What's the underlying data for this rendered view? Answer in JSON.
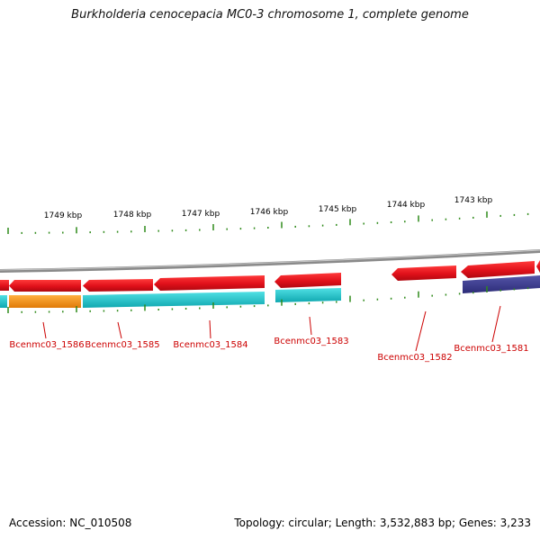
{
  "title": "Burkholderia cenocepacia MC0-3 chromosome 1, complete genome",
  "footer": {
    "accession": "Accession: NC_010508",
    "summary": "Topology: circular; Length: 3,532,883 bp; Genes: 3,233"
  },
  "colors": {
    "forward_gene": "#e8141c",
    "feature_orange": "#f08c10",
    "feature_cyan": "#1ec2c8",
    "feature_navy": "#3a3a8c",
    "backbone": "#8a8a8a",
    "ticks": "#2f8a1a",
    "gene_label": "#cc0000"
  },
  "kbp_markers": [
    "1749 kbp",
    "1748 kbp",
    "1747 kbp",
    "1746 kbp",
    "1745 kbp",
    "1744 kbp",
    "1743 kbp"
  ],
  "gene_labels": [
    "Bcenmc03_1586",
    "Bcenmc03_1585",
    "Bcenmc03_1584",
    "Bcenmc03_1583",
    "Bcenmc03_1582",
    "Bcenmc03_1581"
  ]
}
